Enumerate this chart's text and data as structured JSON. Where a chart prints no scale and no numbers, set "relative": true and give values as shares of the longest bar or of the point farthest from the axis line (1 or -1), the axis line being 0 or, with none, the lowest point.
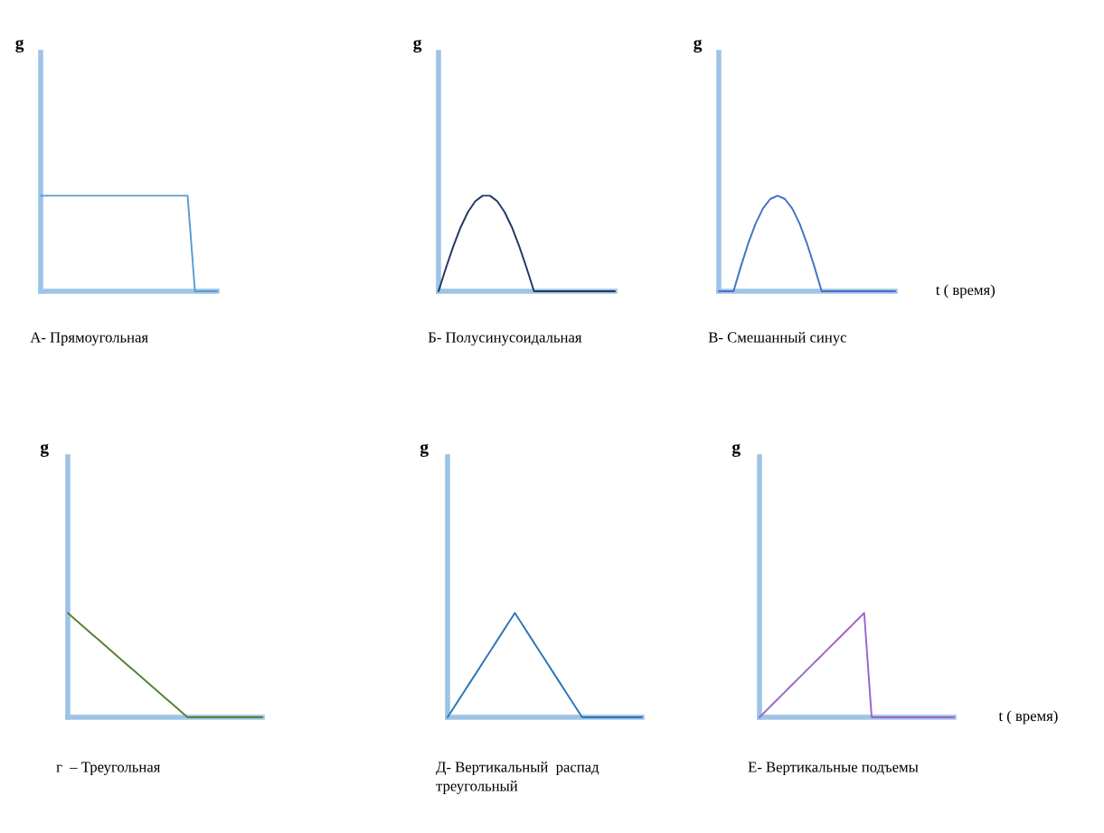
{
  "chart_data": [
    {
      "type": "line",
      "title": "А- Прямоугольная",
      "ylabel": "g",
      "relative": true,
      "tick_labels": false,
      "categories": [
        null,
        null,
        null,
        null,
        null,
        null,
        null,
        null,
        null,
        null,
        null,
        null,
        null,
        null,
        null,
        null,
        null,
        null,
        null,
        null,
        null,
        null,
        null,
        null,
        null
      ],
      "series": [
        {
          "color": "#5b9bd5",
          "values": [
            1,
            1,
            1,
            1,
            1,
            1,
            1,
            1,
            1,
            1,
            1,
            1,
            1,
            1,
            1,
            1,
            1,
            1,
            1,
            1,
            1,
            0,
            0,
            0,
            0
          ]
        }
      ]
    },
    {
      "type": "line",
      "title": "Б- Полусинусоидальная",
      "ylabel": "g",
      "relative": true,
      "tick_labels": false,
      "categories": [
        null,
        null,
        null,
        null,
        null,
        null,
        null,
        null,
        null,
        null,
        null,
        null,
        null,
        null,
        null,
        null,
        null,
        null,
        null,
        null,
        null,
        null,
        null,
        null,
        null
      ],
      "series": [
        {
          "color": "#1f3864",
          "values": [
            0,
            0.241,
            0.468,
            0.668,
            0.829,
            0.942,
            1,
            1,
            0.942,
            0.829,
            0.668,
            0.468,
            0.241,
            0,
            0,
            0,
            0,
            0,
            0,
            0,
            0,
            0,
            0,
            0,
            0
          ]
        }
      ]
    },
    {
      "type": "line",
      "title": "В- Смешанный синус",
      "ylabel": "g",
      "xlabel": "t ( время)",
      "relative": true,
      "tick_labels": false,
      "categories": [
        null,
        null,
        null,
        null,
        null,
        null,
        null,
        null,
        null,
        null,
        null,
        null,
        null,
        null,
        null,
        null,
        null,
        null,
        null,
        null,
        null,
        null,
        null,
        null,
        null
      ],
      "series": [
        {
          "color": "#4472c4",
          "values": [
            0,
            0,
            0,
            0.259,
            0.5,
            0.707,
            0.866,
            0.966,
            1,
            0.966,
            0.866,
            0.707,
            0.5,
            0.259,
            0,
            0,
            0,
            0,
            0,
            0,
            0,
            0,
            0,
            0,
            0
          ]
        }
      ]
    },
    {
      "type": "line",
      "title": "г  – Треугольная",
      "ylabel": "g",
      "relative": true,
      "tick_labels": false,
      "categories": [
        null,
        null,
        null,
        null,
        null,
        null,
        null,
        null,
        null,
        null,
        null,
        null,
        null,
        null,
        null,
        null,
        null,
        null,
        null,
        null,
        null,
        null,
        null,
        null,
        null,
        null,
        null
      ],
      "series": [
        {
          "color": "#548235",
          "values": [
            1,
            0.9375,
            0.875,
            0.8125,
            0.75,
            0.6875,
            0.625,
            0.5625,
            0.5,
            0.4375,
            0.375,
            0.3125,
            0.25,
            0.1875,
            0.125,
            0.0625,
            0,
            0,
            0,
            0,
            0,
            0,
            0,
            0,
            0,
            0,
            0
          ]
        }
      ]
    },
    {
      "type": "line",
      "title": "Д- Вертикальный  распад\nтреугольный",
      "ylabel": "g",
      "relative": true,
      "tick_labels": false,
      "categories": [
        null,
        null,
        null,
        null,
        null,
        null,
        null,
        null,
        null,
        null,
        null,
        null,
        null,
        null,
        null,
        null,
        null,
        null,
        null,
        null,
        null,
        null,
        null,
        null,
        null,
        null,
        null
      ],
      "series": [
        {
          "color": "#2e75b6",
          "values": [
            0,
            0.111,
            0.222,
            0.333,
            0.444,
            0.556,
            0.667,
            0.778,
            0.889,
            1,
            0.889,
            0.778,
            0.667,
            0.556,
            0.444,
            0.333,
            0.222,
            0.111,
            0,
            0,
            0,
            0,
            0,
            0,
            0,
            0,
            0
          ]
        }
      ]
    },
    {
      "type": "line",
      "title": "Е- Вертикальные подъемы",
      "ylabel": "g",
      "xlabel": "t ( время)",
      "relative": true,
      "tick_labels": false,
      "categories": [
        null,
        null,
        null,
        null,
        null,
        null,
        null,
        null,
        null,
        null,
        null,
        null,
        null,
        null,
        null,
        null,
        null,
        null,
        null,
        null,
        null,
        null,
        null,
        null,
        null,
        null,
        null
      ],
      "series": [
        {
          "color": "#9966cc",
          "values": [
            0,
            0.071,
            0.143,
            0.214,
            0.286,
            0.357,
            0.429,
            0.5,
            0.571,
            0.643,
            0.714,
            0.786,
            0.857,
            0.929,
            1,
            0,
            0,
            0,
            0,
            0,
            0,
            0,
            0,
            0,
            0,
            0,
            0
          ]
        }
      ]
    }
  ]
}
